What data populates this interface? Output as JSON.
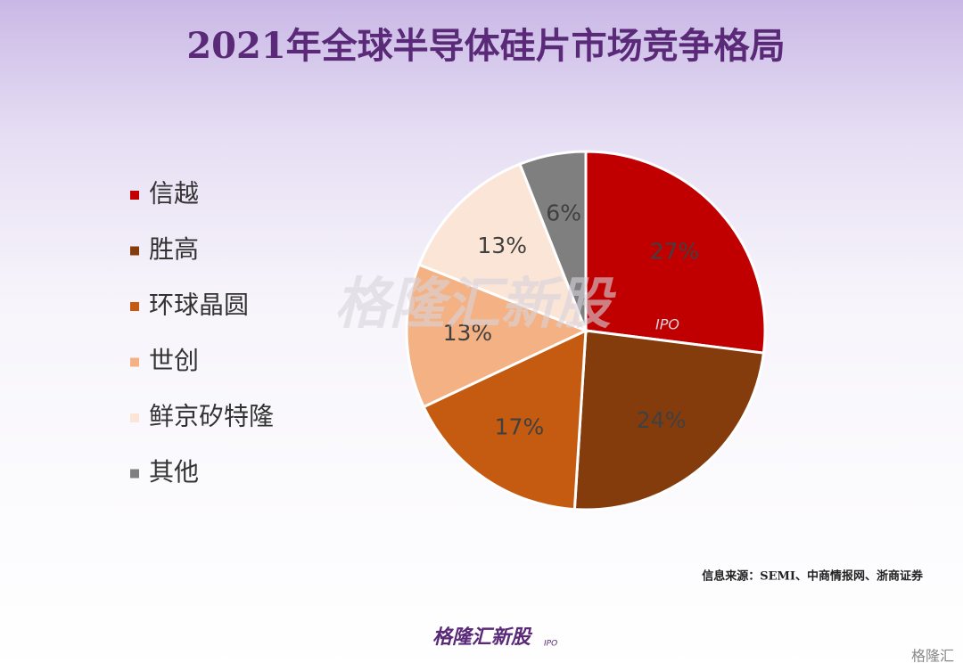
{
  "chart_data": {
    "type": "pie",
    "title": "2021年全球半导体硅片市场竞争格局",
    "categories": [
      "信越",
      "胜高",
      "环球晶圆",
      "世创",
      "鲜京矽特隆",
      "其他"
    ],
    "values": [
      27,
      24,
      17,
      13,
      13,
      6
    ],
    "value_labels": [
      "27%",
      "24%",
      "17%",
      "13%",
      "13%",
      "6%"
    ],
    "colors": [
      "#c00000",
      "#843c0c",
      "#c55a11",
      "#f4b183",
      "#fbe5d6",
      "#7f7f7f"
    ],
    "legend": "left",
    "source": "信息来源：SEMI、中商情报网、浙商证券"
  },
  "watermark": "格隆汇新股",
  "watermark_sub": "IPO",
  "footer_logo": "格隆汇新股",
  "footer_logo_sub": "IPO",
  "corner_logo": "格隆汇"
}
